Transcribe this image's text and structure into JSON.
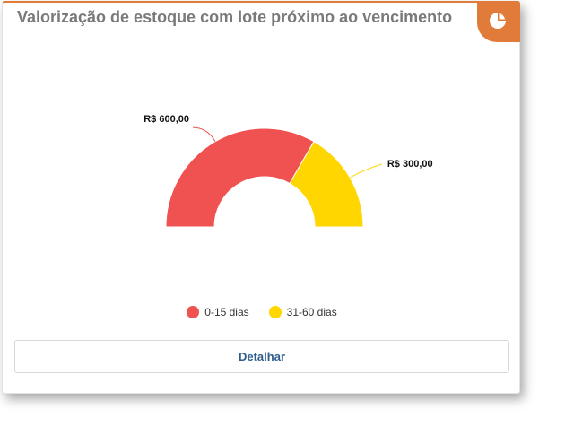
{
  "card": {
    "title": "Valorização de estoque com lote próximo ao vencimento",
    "badge_icon": "pie-chart-icon",
    "accent_color": "#e07b39"
  },
  "chart_data": {
    "type": "pie",
    "variant": "semi-donut",
    "categories": [
      "0-15 dias",
      "31-60 dias"
    ],
    "values": [
      600,
      300
    ],
    "labels": [
      "R$ 600,00",
      "R$ 300,00"
    ],
    "colors": [
      "#f05252",
      "#ffd600"
    ],
    "legend_position": "bottom"
  },
  "actions": {
    "detail_label": "Detalhar"
  }
}
